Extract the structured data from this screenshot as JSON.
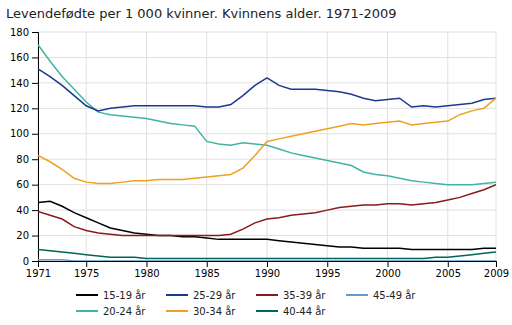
{
  "chart_data": {
    "type": "line",
    "title": "Levendefødte per 1 000 kvinner. Kvinnens alder. 1971-2009",
    "x": [
      1971,
      1972,
      1973,
      1974,
      1975,
      1976,
      1977,
      1978,
      1979,
      1980,
      1981,
      1982,
      1983,
      1984,
      1985,
      1986,
      1987,
      1988,
      1989,
      1990,
      1991,
      1992,
      1993,
      1994,
      1995,
      1996,
      1997,
      1998,
      1999,
      2000,
      2001,
      2002,
      2003,
      2004,
      2005,
      2006,
      2007,
      2008,
      2009
    ],
    "series": [
      {
        "name": "15-19 år",
        "color": "#000000",
        "values": [
          46,
          47,
          43,
          38,
          34,
          30,
          26,
          24,
          22,
          21,
          20,
          20,
          19,
          19,
          18,
          17,
          17,
          17,
          17,
          17,
          16,
          15,
          14,
          13,
          12,
          11,
          11,
          10,
          10,
          10,
          10,
          9,
          9,
          9,
          9,
          9,
          9,
          10,
          10
        ]
      },
      {
        "name": "20-24 år",
        "color": "#41b3a3",
        "values": [
          170,
          157,
          145,
          135,
          125,
          117,
          115,
          114,
          113,
          112,
          110,
          108,
          107,
          106,
          94,
          92,
          91,
          93,
          92,
          91,
          88,
          85,
          83,
          81,
          79,
          77,
          75,
          70,
          68,
          67,
          65,
          63,
          62,
          61,
          60,
          60,
          60,
          61,
          62
        ]
      },
      {
        "name": "25-29 år",
        "color": "#1a3a8f",
        "values": [
          151,
          145,
          138,
          130,
          122,
          118,
          120,
          121,
          122,
          122,
          122,
          122,
          122,
          122,
          121,
          121,
          123,
          130,
          138,
          144,
          138,
          135,
          135,
          135,
          134,
          133,
          131,
          128,
          126,
          127,
          128,
          121,
          122,
          121,
          122,
          123,
          124,
          127,
          128
        ]
      },
      {
        "name": "30-34 år",
        "color": "#f0a020",
        "values": [
          83,
          78,
          72,
          65,
          62,
          61,
          61,
          62,
          63,
          63,
          64,
          64,
          64,
          65,
          66,
          67,
          68,
          73,
          83,
          94,
          96,
          98,
          100,
          102,
          104,
          106,
          108,
          107,
          108,
          109,
          110,
          107,
          108,
          109,
          110,
          115,
          118,
          120,
          128
        ]
      },
      {
        "name": "35-39 år",
        "color": "#8b1a1a",
        "values": [
          39,
          36,
          33,
          27,
          24,
          22,
          21,
          20,
          20,
          20,
          20,
          20,
          20,
          20,
          20,
          20,
          21,
          25,
          30,
          33,
          34,
          36,
          37,
          38,
          40,
          42,
          43,
          44,
          44,
          45,
          45,
          44,
          45,
          46,
          48,
          50,
          53,
          56,
          60
        ]
      },
      {
        "name": "40-44 år",
        "color": "#006655",
        "values": [
          9,
          8,
          7,
          6,
          5,
          4,
          3,
          3,
          3,
          2,
          2,
          2,
          2,
          2,
          2,
          2,
          2,
          2,
          2,
          2,
          2,
          2,
          2,
          2,
          2,
          2,
          2,
          2,
          2,
          2,
          2,
          2,
          2,
          3,
          3,
          4,
          5,
          6,
          7
        ]
      },
      {
        "name": "45-49 år",
        "color": "#6699cc",
        "values": [
          1,
          1,
          1,
          0,
          0,
          0,
          0,
          0,
          0,
          0,
          0,
          0,
          0,
          0,
          0,
          0,
          0,
          0,
          0,
          0,
          0,
          0,
          0,
          0,
          0,
          0,
          0,
          0,
          0,
          0,
          0,
          0,
          0,
          0,
          0,
          0,
          0,
          0,
          0
        ]
      }
    ],
    "xlim": [
      1971,
      2009
    ],
    "ylim": [
      0,
      180
    ],
    "xticks": [
      1971,
      1975,
      1980,
      1985,
      1990,
      1995,
      2000,
      2005,
      2009
    ],
    "yticks": [
      0,
      20,
      40,
      60,
      80,
      100,
      120,
      140,
      160,
      180
    ],
    "grid": true,
    "legend": "bottom"
  }
}
